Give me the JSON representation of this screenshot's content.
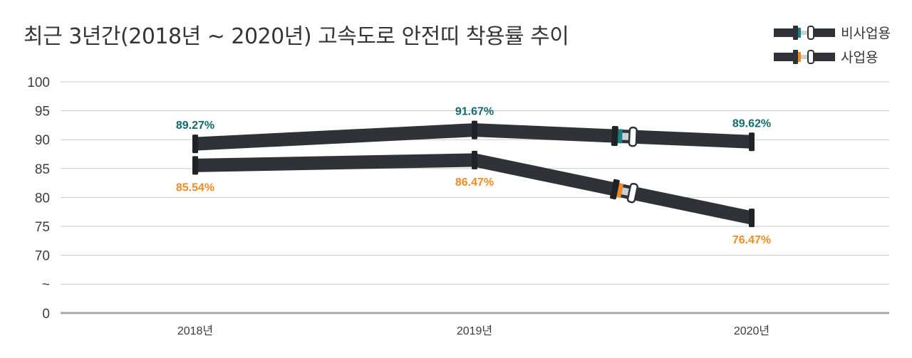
{
  "chart_data": {
    "type": "line",
    "title": "최근 3년간(2018년 ~ 2020년) 고속도로 안전띠 착용률 추이",
    "categories": [
      "2018년",
      "2019년",
      "2020년"
    ],
    "y_ticks": [
      "100",
      "95",
      "90",
      "85",
      "80",
      "75",
      "70",
      "~",
      "0"
    ],
    "y_axis_break": true,
    "ylim": [
      0,
      100
    ],
    "grid": true,
    "legend_position": "top-right",
    "series": [
      {
        "name": "비사업용",
        "values": [
          89.27,
          91.67,
          89.62
        ],
        "labels": [
          "89.27%",
          "91.67%",
          "89.62%"
        ],
        "label_color": "#116b6e",
        "buckle_color": "#1b7f86"
      },
      {
        "name": "사업용",
        "values": [
          85.54,
          86.47,
          76.47
        ],
        "labels": [
          "85.54%",
          "86.47%",
          "76.47%"
        ],
        "label_color": "#f08a24",
        "buckle_color": "#f08a24"
      }
    ],
    "colors": {
      "strap": "#2f3338",
      "strap_dark": "#1f2226",
      "grid": "#c9c9c9",
      "axis": "#a9a9a9",
      "text": "#333638"
    }
  },
  "legend_icons": [
    "seatbelt-icon",
    "seatbelt-icon"
  ]
}
